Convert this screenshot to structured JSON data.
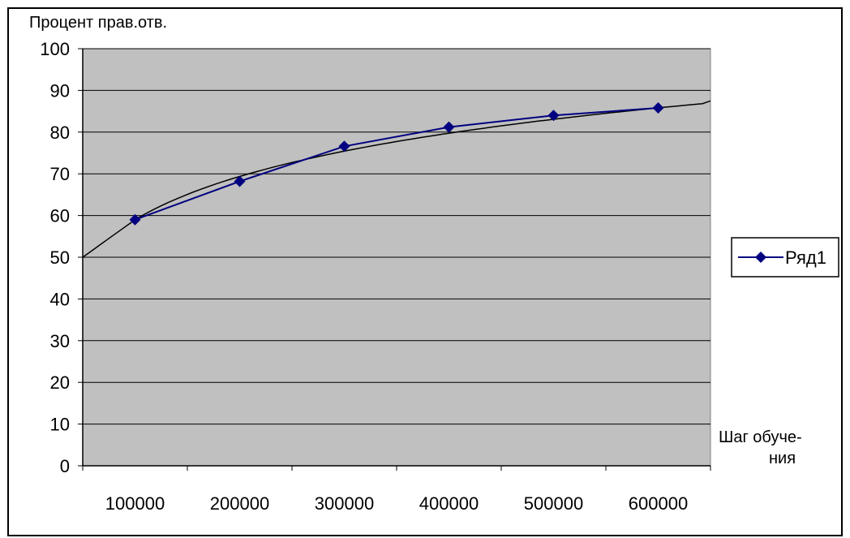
{
  "chart_data": {
    "type": "line",
    "title": "",
    "ylabel": "Процент прав.отв.",
    "xlabel_lines": [
      "Шаг обуче-",
      "ния"
    ],
    "categories": [
      "100000",
      "200000",
      "300000",
      "400000",
      "500000",
      "600000"
    ],
    "series": [
      {
        "name": "Ряд1",
        "values": [
          59,
          68.2,
          76.6,
          81.2,
          84,
          85.8
        ]
      }
    ],
    "trendline": {
      "type": "logarithmic",
      "start_value": 50,
      "end_value": 87.5
    },
    "ylim": [
      0,
      100
    ],
    "y_ticks": [
      0,
      10,
      20,
      30,
      40,
      50,
      60,
      70,
      80,
      90,
      100
    ],
    "grid": true,
    "legend_position": "right",
    "colors": {
      "plot_background": "#c0c0c0",
      "series": "#000080",
      "trendline": "#000000",
      "gridlines": "#000000"
    }
  }
}
